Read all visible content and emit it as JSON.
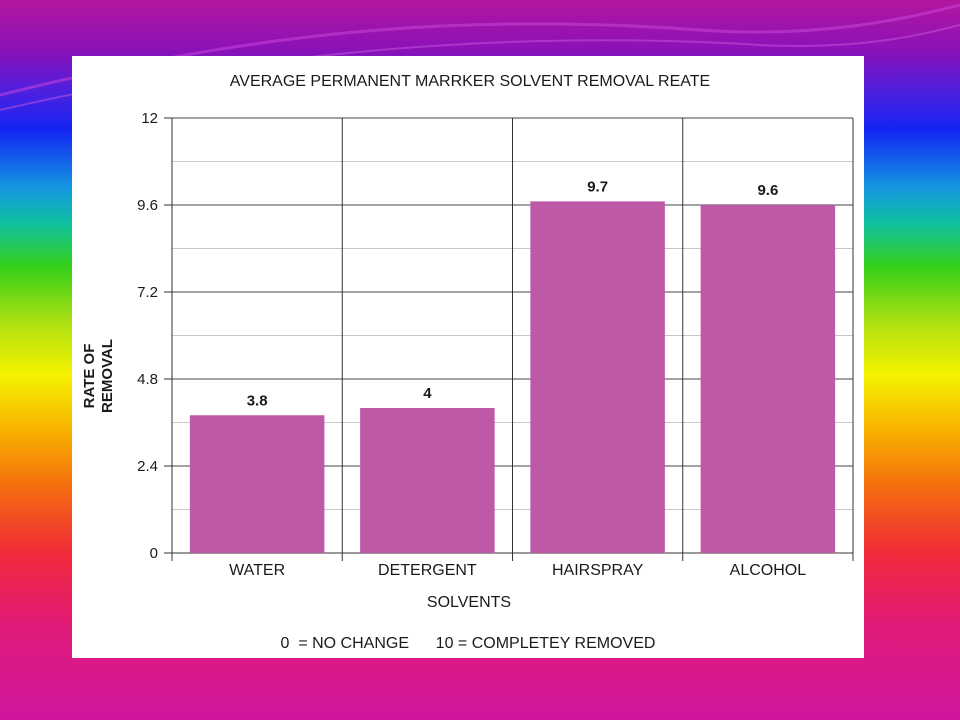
{
  "chart_data": {
    "type": "bar",
    "title": "AVERAGE PERMANENT MARRKER SOLVENT REMOVAL REATE",
    "xlabel": "SOLVENTS",
    "ylabel_lines": [
      "RATE OF",
      "REMOVAL"
    ],
    "categories": [
      "WATER",
      "DETERGENT",
      "HAIRSPRAY",
      "ALCOHOL"
    ],
    "values": [
      3.8,
      4,
      9.7,
      9.6
    ],
    "value_labels": [
      "3.8",
      "4",
      "9.7",
      "9.6"
    ],
    "yticks": [
      "0",
      "2.4",
      "4.8",
      "7.2",
      "9.6",
      "12"
    ],
    "ylim": [
      0,
      12
    ],
    "note": "0  = NO CHANGE      10 = COMPLETEY REMOVED",
    "bar_color": "#bd59a6",
    "grid": true
  }
}
